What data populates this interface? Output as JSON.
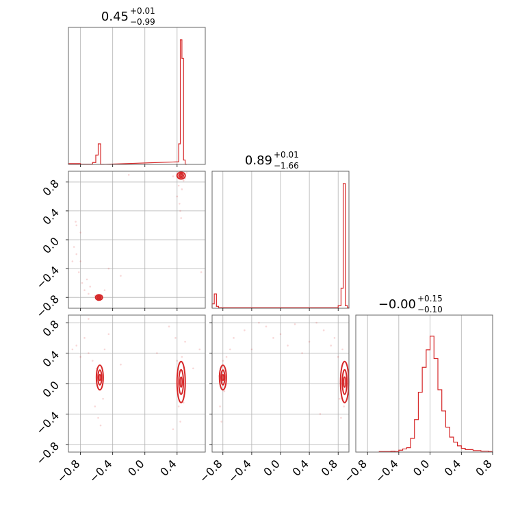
{
  "figure": {
    "type": "corner",
    "accent_color": "#d62728",
    "grid": true
  },
  "chart_data": [
    {
      "type": "histogram",
      "param_index": 0,
      "title": {
        "median": "0.45",
        "plus": "+0.01",
        "minus": "−0.99"
      },
      "xlim": [
        -0.95,
        0.75
      ],
      "bins": [
        [
          -0.95,
          -0.9,
          0.006
        ],
        [
          -0.9,
          -0.85,
          0.006
        ],
        [
          -0.85,
          -0.8,
          0.006
        ],
        [
          -0.8,
          -0.75,
          0.002
        ],
        [
          -0.75,
          -0.7,
          0.002
        ],
        [
          -0.7,
          -0.65,
          0.002
        ],
        [
          -0.65,
          -0.61,
          0.015
        ],
        [
          -0.61,
          -0.58,
          0.075
        ],
        [
          -0.58,
          -0.55,
          0.165
        ],
        [
          -0.55,
          -0.52,
          0.0
        ],
        [
          0.39,
          0.42,
          0.02
        ],
        [
          0.42,
          0.44,
          0.165
        ],
        [
          0.44,
          0.46,
          1.0
        ],
        [
          0.46,
          0.48,
          0.85
        ],
        [
          0.48,
          0.5,
          0.035
        ],
        [
          0.5,
          0.52,
          0.0
        ]
      ]
    },
    {
      "type": "histogram",
      "param_index": 1,
      "title": {
        "median": "0.89",
        "plus": "+0.01",
        "minus": "−1.66"
      },
      "xlim": [
        -0.95,
        0.95
      ],
      "bins": [
        [
          -0.95,
          -0.92,
          0.035
        ],
        [
          -0.92,
          -0.89,
          0.115
        ],
        [
          -0.89,
          -0.86,
          0.015
        ],
        [
          -0.86,
          -0.8,
          0.004
        ],
        [
          -0.8,
          -0.5,
          0.004
        ],
        [
          -0.5,
          -0.2,
          0.004
        ],
        [
          -0.2,
          0.1,
          0.004
        ],
        [
          0.1,
          0.4,
          0.004
        ],
        [
          0.4,
          0.7,
          0.004
        ],
        [
          0.7,
          0.8,
          0.004
        ],
        [
          0.8,
          0.84,
          0.02
        ],
        [
          0.84,
          0.87,
          0.16
        ],
        [
          0.87,
          0.9,
          1.0
        ],
        [
          0.9,
          0.93,
          0.02
        ],
        [
          0.93,
          0.95,
          0.004
        ]
      ]
    },
    {
      "type": "histogram",
      "param_index": 2,
      "title": {
        "median": "−0.00",
        "plus": "+0.15",
        "minus": "−0.10"
      },
      "xlim": [
        -0.95,
        0.8
      ],
      "bins": [
        [
          -0.65,
          -0.6,
          0.004
        ],
        [
          -0.6,
          -0.55,
          0.004
        ],
        [
          -0.55,
          -0.5,
          0.004
        ],
        [
          -0.5,
          -0.45,
          0.007
        ],
        [
          -0.45,
          -0.4,
          0.004
        ],
        [
          -0.4,
          -0.35,
          0.015
        ],
        [
          -0.35,
          -0.3,
          0.025
        ],
        [
          -0.3,
          -0.25,
          0.035
        ],
        [
          -0.25,
          -0.2,
          0.11
        ],
        [
          -0.2,
          -0.15,
          0.26
        ],
        [
          -0.15,
          -0.1,
          0.48
        ],
        [
          -0.1,
          -0.05,
          0.68
        ],
        [
          -0.05,
          0.0,
          0.82
        ],
        [
          0.0,
          0.05,
          0.93
        ],
        [
          0.05,
          0.1,
          0.75
        ],
        [
          0.1,
          0.15,
          0.5
        ],
        [
          0.15,
          0.2,
          0.33
        ],
        [
          0.2,
          0.25,
          0.2
        ],
        [
          0.25,
          0.3,
          0.12
        ],
        [
          0.3,
          0.35,
          0.08
        ],
        [
          0.35,
          0.4,
          0.05
        ],
        [
          0.4,
          0.45,
          0.03
        ],
        [
          0.45,
          0.55,
          0.02
        ],
        [
          0.55,
          0.65,
          0.012
        ],
        [
          0.65,
          0.75,
          0.008
        ],
        [
          0.75,
          0.8,
          0.004
        ]
      ]
    },
    {
      "type": "scatter-contour",
      "x_param": 0,
      "y_param": 1,
      "xlim": [
        -0.95,
        0.75
      ],
      "ylim": [
        -0.95,
        0.95
      ],
      "modes": [
        [
          0.45,
          0.89
        ],
        [
          -0.57,
          -0.8
        ]
      ],
      "scatter": [
        [
          -0.9,
          -0.3
        ],
        [
          -0.88,
          -0.1
        ],
        [
          -0.85,
          0.2
        ],
        [
          -0.82,
          -0.45
        ],
        [
          -0.8,
          0.1
        ],
        [
          -0.78,
          -0.6
        ],
        [
          -0.75,
          -0.7
        ],
        [
          -0.72,
          -0.55
        ],
        [
          -0.7,
          -0.75
        ],
        [
          -0.68,
          -0.65
        ],
        [
          -0.62,
          -0.78
        ],
        [
          -0.6,
          -0.82
        ],
        [
          -0.58,
          -0.84
        ],
        [
          -0.55,
          -0.8
        ],
        [
          -0.5,
          -0.7
        ],
        [
          -0.45,
          -0.4
        ],
        [
          -0.3,
          -0.5
        ],
        [
          0.4,
          0.6
        ],
        [
          0.42,
          0.75
        ],
        [
          0.43,
          0.5
        ],
        [
          0.44,
          0.4
        ],
        [
          0.46,
          0.7
        ],
        [
          0.48,
          0.82
        ],
        [
          0.5,
          0.85
        ],
        [
          0.52,
          0.93
        ],
        [
          0.45,
          0.3
        ],
        [
          -0.85,
          -0.2
        ],
        [
          -0.86,
          0.25
        ],
        [
          -0.8,
          -0.3
        ],
        [
          0.7,
          -0.45
        ],
        [
          0.35,
          0.88
        ],
        [
          -0.2,
          0.9
        ]
      ]
    },
    {
      "type": "scatter-contour",
      "x_param": 0,
      "y_param": 2,
      "xlim": [
        -0.95,
        0.75
      ],
      "ylim": [
        -0.9,
        0.9
      ],
      "modes": [
        [
          0.45,
          0.02
        ],
        [
          -0.56,
          0.08
        ]
      ],
      "scatter": [
        [
          -0.9,
          0.45
        ],
        [
          -0.85,
          0.5
        ],
        [
          -0.8,
          0.35
        ],
        [
          -0.75,
          0.6
        ],
        [
          -0.7,
          0.4
        ],
        [
          -0.65,
          0.3
        ],
        [
          -0.6,
          0.2
        ],
        [
          -0.62,
          -0.3
        ],
        [
          -0.58,
          -0.45
        ],
        [
          -0.55,
          -0.55
        ],
        [
          -0.52,
          -0.2
        ],
        [
          -0.5,
          0.45
        ],
        [
          -0.45,
          0.65
        ],
        [
          -0.3,
          0.25
        ],
        [
          -0.7,
          0.85
        ],
        [
          0.38,
          0.6
        ],
        [
          0.4,
          0.3
        ],
        [
          0.42,
          -0.3
        ],
        [
          0.44,
          -0.5
        ],
        [
          0.46,
          0.35
        ],
        [
          0.48,
          -0.25
        ],
        [
          0.5,
          0.55
        ],
        [
          0.6,
          0.2
        ],
        [
          0.68,
          0.45
        ],
        [
          0.35,
          -0.6
        ],
        [
          0.3,
          0.75
        ],
        [
          0.15,
          0.4
        ]
      ]
    },
    {
      "type": "scatter-contour",
      "x_param": 1,
      "y_param": 2,
      "xlim": [
        -0.95,
        0.95
      ],
      "ylim": [
        -0.9,
        0.9
      ],
      "modes": [
        [
          0.89,
          0.02
        ],
        [
          -0.8,
          0.08
        ]
      ],
      "scatter": [
        [
          -0.85,
          0.1
        ],
        [
          -0.84,
          -0.3
        ],
        [
          -0.82,
          -0.5
        ],
        [
          -0.8,
          0.3
        ],
        [
          -0.78,
          -0.1
        ],
        [
          -0.75,
          0.35
        ],
        [
          -0.7,
          0.45
        ],
        [
          -0.65,
          0.6
        ],
        [
          -0.5,
          0.7
        ],
        [
          -0.4,
          0.45
        ],
        [
          -0.3,
          0.8
        ],
        [
          -0.2,
          0.75
        ],
        [
          -0.1,
          0.6
        ],
        [
          0.0,
          0.65
        ],
        [
          0.1,
          0.5
        ],
        [
          0.2,
          0.78
        ],
        [
          0.3,
          0.4
        ],
        [
          0.4,
          0.55
        ],
        [
          0.5,
          0.8
        ],
        [
          0.6,
          0.7
        ],
        [
          0.7,
          0.5
        ],
        [
          0.75,
          0.6
        ],
        [
          0.8,
          0.35
        ],
        [
          0.82,
          -0.2
        ],
        [
          0.84,
          -0.45
        ],
        [
          0.86,
          0.45
        ],
        [
          0.88,
          -0.3
        ],
        [
          0.55,
          -0.4
        ]
      ]
    }
  ],
  "axes": {
    "x_ticks_0": [
      "−0.8",
      "−0.4",
      "0.0",
      "0.4"
    ],
    "x_ticks_1": [
      "−0.8",
      "−0.4",
      "0.0",
      "0.4",
      "0.8"
    ],
    "x_ticks_2": [
      "−0.8",
      "−0.4",
      "0.0",
      "0.4",
      "0.8"
    ],
    "y_ticks_1": [
      "0.8",
      "0.4",
      "0.0",
      "−0.4",
      "−0.8"
    ],
    "y_ticks_2": [
      "0.8",
      "0.4",
      "0.0",
      "−0.4",
      "−0.8"
    ]
  }
}
